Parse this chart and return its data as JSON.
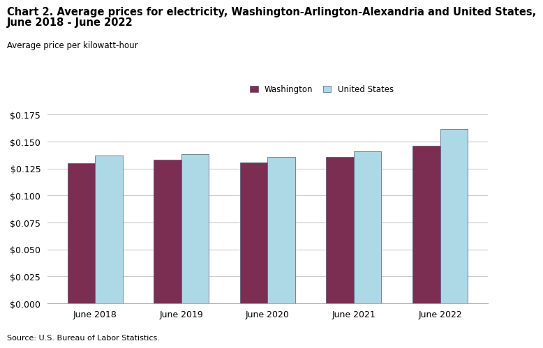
{
  "title_line1": "Chart 2. Average prices for electricity, Washington-Arlington-Alexandria and United States,",
  "title_line2": "June 2018 - June 2022",
  "ylabel": "Average price per kilowatt-hour",
  "source": "Source: U.S. Bureau of Labor Statistics.",
  "categories": [
    "June 2018",
    "June 2019",
    "June 2020",
    "June 2021",
    "June 2022"
  ],
  "washington": [
    0.1302,
    0.133,
    0.1305,
    0.136,
    0.1462
  ],
  "us": [
    0.1373,
    0.1381,
    0.1358,
    0.1412,
    0.1613
  ],
  "washington_color": "#7B2D52",
  "us_color": "#ADD8E6",
  "bar_edgecolor": "#555577",
  "ylim": [
    0,
    0.175
  ],
  "yticks": [
    0.0,
    0.025,
    0.05,
    0.075,
    0.1,
    0.125,
    0.15,
    0.175
  ],
  "legend_washington": "Washington",
  "legend_us": "United States",
  "title_fontsize": 10.5,
  "label_fontsize": 8.5,
  "tick_fontsize": 9,
  "source_fontsize": 8,
  "background_color": "#ffffff"
}
